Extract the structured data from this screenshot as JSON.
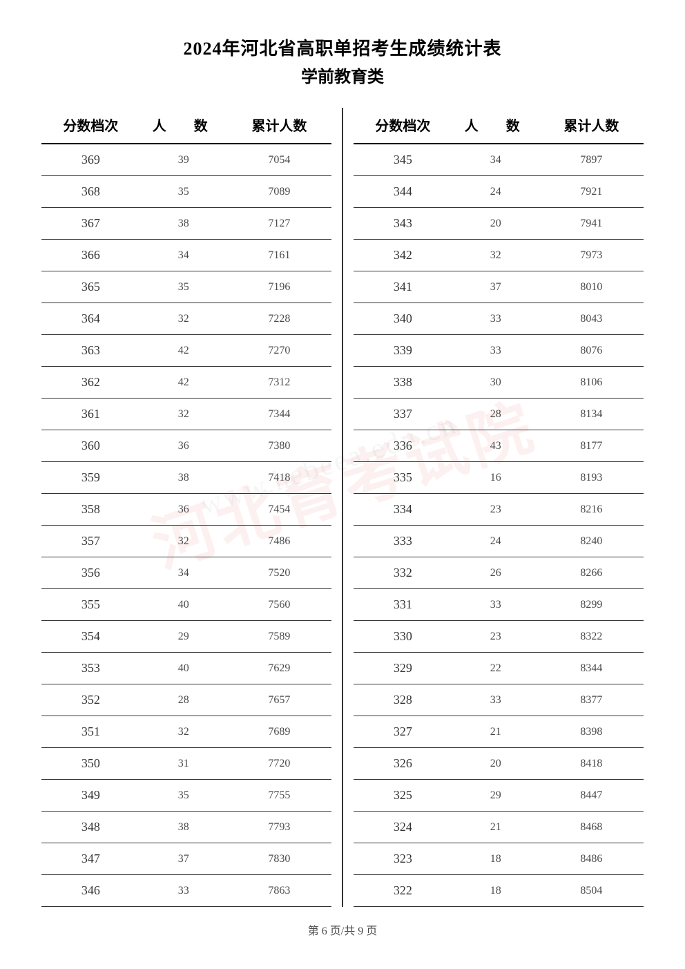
{
  "title": "2024年河北省高职单招考生成绩统计表",
  "subtitle": "学前教育类",
  "headers": {
    "score": "分数档次",
    "count": "人　数",
    "cumulative": "累计人数"
  },
  "left_rows": [
    {
      "score": "369",
      "count": "39",
      "cum": "7054"
    },
    {
      "score": "368",
      "count": "35",
      "cum": "7089"
    },
    {
      "score": "367",
      "count": "38",
      "cum": "7127"
    },
    {
      "score": "366",
      "count": "34",
      "cum": "7161"
    },
    {
      "score": "365",
      "count": "35",
      "cum": "7196"
    },
    {
      "score": "364",
      "count": "32",
      "cum": "7228"
    },
    {
      "score": "363",
      "count": "42",
      "cum": "7270"
    },
    {
      "score": "362",
      "count": "42",
      "cum": "7312"
    },
    {
      "score": "361",
      "count": "32",
      "cum": "7344"
    },
    {
      "score": "360",
      "count": "36",
      "cum": "7380"
    },
    {
      "score": "359",
      "count": "38",
      "cum": "7418"
    },
    {
      "score": "358",
      "count": "36",
      "cum": "7454"
    },
    {
      "score": "357",
      "count": "32",
      "cum": "7486"
    },
    {
      "score": "356",
      "count": "34",
      "cum": "7520"
    },
    {
      "score": "355",
      "count": "40",
      "cum": "7560"
    },
    {
      "score": "354",
      "count": "29",
      "cum": "7589"
    },
    {
      "score": "353",
      "count": "40",
      "cum": "7629"
    },
    {
      "score": "352",
      "count": "28",
      "cum": "7657"
    },
    {
      "score": "351",
      "count": "32",
      "cum": "7689"
    },
    {
      "score": "350",
      "count": "31",
      "cum": "7720"
    },
    {
      "score": "349",
      "count": "35",
      "cum": "7755"
    },
    {
      "score": "348",
      "count": "38",
      "cum": "7793"
    },
    {
      "score": "347",
      "count": "37",
      "cum": "7830"
    },
    {
      "score": "346",
      "count": "33",
      "cum": "7863"
    }
  ],
  "right_rows": [
    {
      "score": "345",
      "count": "34",
      "cum": "7897"
    },
    {
      "score": "344",
      "count": "24",
      "cum": "7921"
    },
    {
      "score": "343",
      "count": "20",
      "cum": "7941"
    },
    {
      "score": "342",
      "count": "32",
      "cum": "7973"
    },
    {
      "score": "341",
      "count": "37",
      "cum": "8010"
    },
    {
      "score": "340",
      "count": "33",
      "cum": "8043"
    },
    {
      "score": "339",
      "count": "33",
      "cum": "8076"
    },
    {
      "score": "338",
      "count": "30",
      "cum": "8106"
    },
    {
      "score": "337",
      "count": "28",
      "cum": "8134"
    },
    {
      "score": "336",
      "count": "43",
      "cum": "8177"
    },
    {
      "score": "335",
      "count": "16",
      "cum": "8193"
    },
    {
      "score": "334",
      "count": "23",
      "cum": "8216"
    },
    {
      "score": "333",
      "count": "24",
      "cum": "8240"
    },
    {
      "score": "332",
      "count": "26",
      "cum": "8266"
    },
    {
      "score": "331",
      "count": "33",
      "cum": "8299"
    },
    {
      "score": "330",
      "count": "23",
      "cum": "8322"
    },
    {
      "score": "329",
      "count": "22",
      "cum": "8344"
    },
    {
      "score": "328",
      "count": "33",
      "cum": "8377"
    },
    {
      "score": "327",
      "count": "21",
      "cum": "8398"
    },
    {
      "score": "326",
      "count": "20",
      "cum": "8418"
    },
    {
      "score": "325",
      "count": "29",
      "cum": "8447"
    },
    {
      "score": "324",
      "count": "21",
      "cum": "8468"
    },
    {
      "score": "323",
      "count": "18",
      "cum": "8486"
    },
    {
      "score": "322",
      "count": "18",
      "cum": "8504"
    }
  ],
  "footer": "第 6 页/共 9 页",
  "watermark_main": "河北育考试院",
  "watermark_sub": "www.hebeea.edu.cn",
  "styling": {
    "page_bg": "#ffffff",
    "text_color": "#333333",
    "muted_color": "#4a4a4a",
    "border_color": "#333333",
    "header_border_width": 2,
    "row_border_width": 1.5,
    "title_fontsize": 26,
    "subtitle_fontsize": 24,
    "header_fontsize": 20,
    "score_fontsize": 18,
    "cell_fontsize": 16,
    "footer_fontsize": 16,
    "watermark_color": "rgba(220,80,60,0.08)",
    "watermark_fontsize": 90
  }
}
